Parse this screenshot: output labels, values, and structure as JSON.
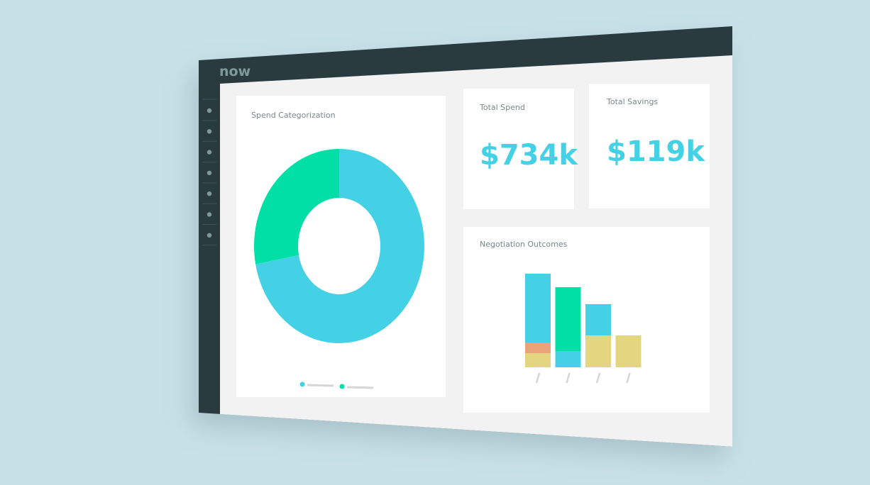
{
  "header": {
    "logo": "now"
  },
  "kpis": [
    {
      "title": "Total Spend",
      "value": "$734k"
    },
    {
      "title": "Total Savings",
      "value": "$119k"
    }
  ],
  "chart_data": [
    {
      "type": "pie",
      "donut": true,
      "title": "Spend Categorization",
      "values": [
        72,
        28
      ],
      "colors": [
        "#45d1e5",
        "#00e0a6"
      ]
    },
    {
      "type": "bar",
      "stacked": true,
      "title": "Negotiation Outcomes",
      "categories": [
        null,
        null,
        null,
        null
      ],
      "series": [
        {
          "color": "#e4d680",
          "values": [
            20,
            0,
            45,
            45
          ]
        },
        {
          "color": "#eba47a",
          "values": [
            15,
            0,
            0,
            0
          ]
        },
        {
          "color": "#45d1e5",
          "values": [
            97,
            23,
            44,
            0
          ]
        },
        {
          "color": "#00e0a6",
          "values": [
            0,
            90,
            0,
            0
          ]
        }
      ],
      "ylim": [
        0,
        140
      ]
    }
  ]
}
